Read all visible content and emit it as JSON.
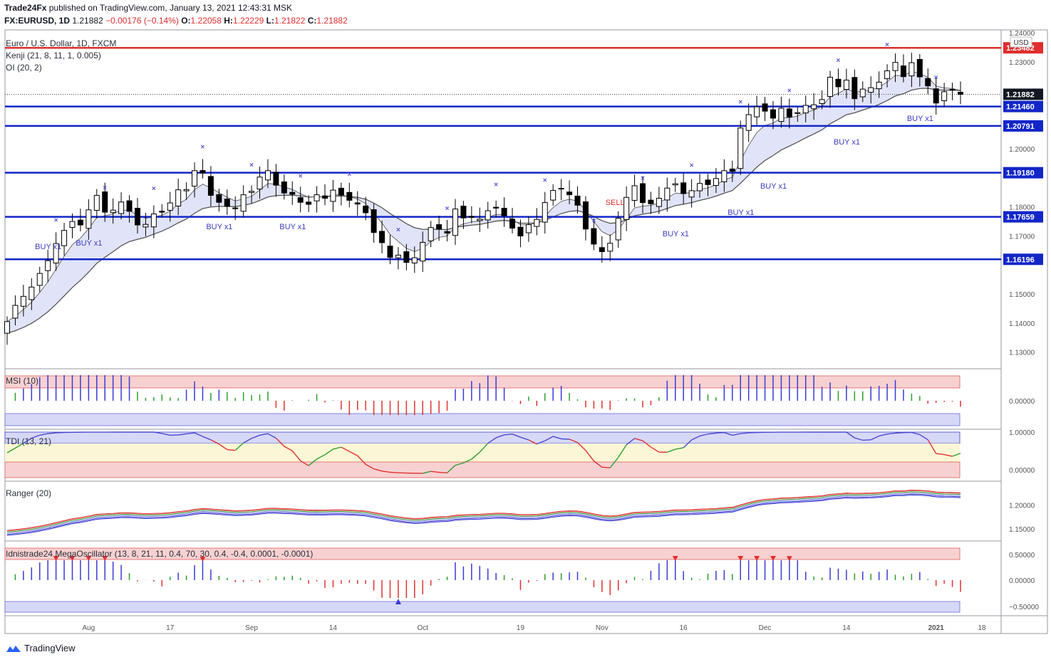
{
  "header": {
    "publisher": "Trade24Fx",
    "published_text": "published on TradingView.com, January 13, 2021 12:43:31 MSK",
    "symbol_line": "FX:EURUSD, 1D",
    "last": "1.21882",
    "change": "−0.00176 (−0.14%)",
    "O": "1.22058",
    "H": "1.22229",
    "L": "1.21822",
    "C": "1.21882"
  },
  "legend": {
    "title": "Euro / U.S. Dollar, 1D, FXCM",
    "kenji": "Kenji (21, 8, 11, 1, 0.005)",
    "oi": "OI (20, 2)",
    "msi": "MSI (10)",
    "tdi": "TDI (13, 21)",
    "ranger": "Ranger (20)",
    "mega": "Idnistrade24 MegaOscillator (13, 8, 21, 11, 0.4, 70, 30, 0.4, -0.4, 0.0001, -0.0001)"
  },
  "footer": {
    "brand": "TradingView"
  },
  "chart_data": {
    "type": "candlestick",
    "currency": "USD",
    "price_axis": {
      "ticks": [
        "1.24000",
        "1.23000",
        "1.22000",
        "1.21000",
        "1.20000",
        "1.19000",
        "1.18000",
        "1.17000",
        "1.16000",
        "1.15000",
        "1.14000",
        "1.13000"
      ],
      "range": [
        1.125,
        1.241
      ]
    },
    "last_price": "1.21882",
    "levels": [
      {
        "label": "1.23482",
        "value": 1.23482,
        "color": "#e02d2d"
      },
      {
        "label": "1.21460",
        "value": 1.2146,
        "color": "#1226c8"
      },
      {
        "label": "1.20791",
        "value": 1.20791,
        "color": "#1226c8"
      },
      {
        "label": "1.19180",
        "value": 1.1918,
        "color": "#1226c8"
      },
      {
        "label": "1.17659",
        "value": 1.17659,
        "color": "#1226c8"
      },
      {
        "label": "1.16196",
        "value": 1.16196,
        "color": "#1226c8"
      }
    ],
    "x_ticks": [
      "Aug",
      "17",
      "Sep",
      "14",
      "Oct",
      "19",
      "Nov",
      "16",
      "Dec",
      "14",
      "2021",
      "18"
    ],
    "candles_close": [
      1.1405,
      1.1461,
      1.1492,
      1.1524,
      1.1571,
      1.1615,
      1.1674,
      1.1719,
      1.175,
      1.1738,
      1.179,
      1.184,
      1.1782,
      1.1789,
      1.1817,
      1.1785,
      1.1738,
      1.174,
      1.1776,
      1.1782,
      1.1814,
      1.1859,
      1.186,
      1.1925,
      1.1917,
      1.184,
      1.1816,
      1.1802,
      1.1795,
      1.1842,
      1.1854,
      1.1903,
      1.1925,
      1.1875,
      1.1848,
      1.1844,
      1.1816,
      1.1809,
      1.1842,
      1.183,
      1.1858,
      1.1841,
      1.1823,
      1.181,
      1.178,
      1.1712,
      1.1677,
      1.1626,
      1.1634,
      1.1609,
      1.1625,
      1.1678,
      1.1729,
      1.1723,
      1.171,
      1.1793,
      1.1762,
      1.1764,
      1.1758,
      1.1787,
      1.1796,
      1.177,
      1.1727,
      1.17,
      1.1739,
      1.1757,
      1.1815,
      1.1857,
      1.1862,
      1.1842,
      1.1806,
      1.1724,
      1.1672,
      1.1646,
      1.1675,
      1.1761,
      1.1833,
      1.1873,
      1.1815,
      1.1811,
      1.183,
      1.1865,
      1.188,
      1.1846,
      1.1856,
      1.1881,
      1.1877,
      1.1898,
      1.1925,
      1.1923,
      1.2072,
      1.2118,
      1.2145,
      1.213,
      1.2106,
      1.214,
      1.211,
      1.2125,
      1.215,
      1.2152,
      1.217,
      1.2247,
      1.2214,
      1.2237,
      1.2173,
      1.2206,
      1.2211,
      1.223,
      1.2269,
      1.2298,
      1.2249,
      1.2297,
      1.2248,
      1.2217,
      1.2158,
      1.2197,
      1.2205,
      1.2188
    ]
  }
}
